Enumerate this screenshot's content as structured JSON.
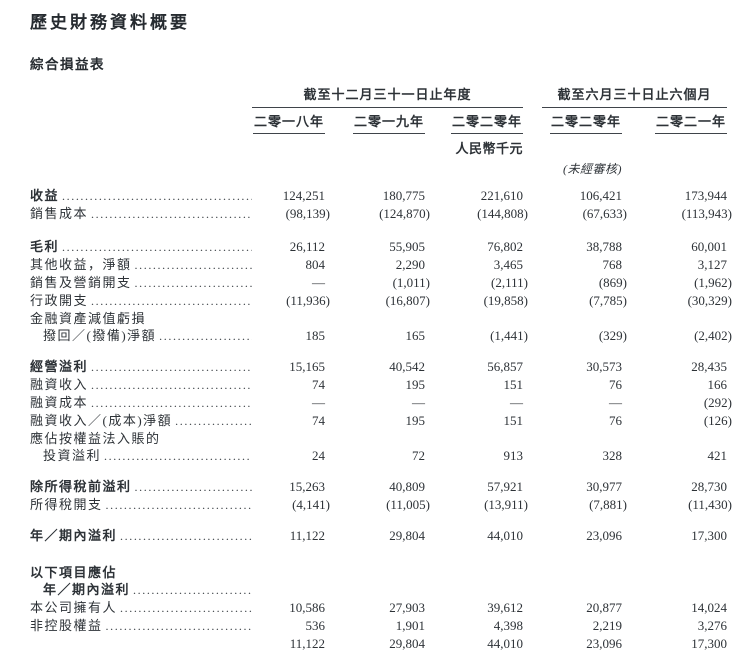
{
  "page": {
    "title": "歷史財務資料概要",
    "subtitle": "綜合損益表"
  },
  "table": {
    "unit_label": "人民幣千元",
    "unaudited_label": "(未經審核)",
    "col_groups": [
      {
        "label": "截至十二月三十一日止年度",
        "cols": [
          "二零一八年",
          "二零一九年",
          "二零二零年"
        ]
      },
      {
        "label": "截至六月三十日止六個月",
        "cols": [
          "二零二零年",
          "二零二一年"
        ]
      }
    ],
    "rows": [
      {
        "label": "收益",
        "bold": true,
        "dots": true,
        "values": [
          "124,251",
          "180,775",
          "221,610",
          "106,421",
          "173,944"
        ]
      },
      {
        "label": "銷售成本",
        "dots": true,
        "values": [
          "(98,139)",
          "(124,870)",
          "(144,808)",
          "(67,633)",
          "(113,943)"
        ]
      },
      {
        "label": "毛利",
        "bold": true,
        "dots": true,
        "gap": 15,
        "values": [
          "26,112",
          "55,905",
          "76,802",
          "38,788",
          "60,001"
        ]
      },
      {
        "label": "其他收益，淨額",
        "dots": true,
        "values": [
          "804",
          "2,290",
          "3,465",
          "768",
          "3,127"
        ]
      },
      {
        "label": "銷售及營銷開支",
        "dots": true,
        "values": [
          "—",
          "(1,011)",
          "(2,111)",
          "(869)",
          "(1,962)"
        ]
      },
      {
        "label": "行政開支",
        "dots": true,
        "values": [
          "(11,936)",
          "(16,807)",
          "(19,858)",
          "(7,785)",
          "(30,329)"
        ]
      },
      {
        "label": "金融資產減值虧損"
      },
      {
        "label": "撥回／(撥備)淨額",
        "indent": true,
        "dots": true,
        "values": [
          "185",
          "165",
          "(1,441)",
          "(329)",
          "(2,402)"
        ]
      },
      {
        "label": "經營溢利",
        "bold": true,
        "dots": true,
        "gap": 13,
        "values": [
          "15,165",
          "40,542",
          "56,857",
          "30,573",
          "28,435"
        ]
      },
      {
        "label": "融資收入",
        "dots": true,
        "values": [
          "74",
          "195",
          "151",
          "76",
          "166"
        ]
      },
      {
        "label": "融資成本",
        "dots": true,
        "values": [
          "—",
          "—",
          "—",
          "—",
          "(292)"
        ]
      },
      {
        "label": "融資收入／(成本)淨額",
        "dots": true,
        "values": [
          "74",
          "195",
          "151",
          "76",
          "(126)"
        ]
      },
      {
        "label": "應佔按權益法入賬的"
      },
      {
        "label": "投資溢利",
        "indent": true,
        "dots": true,
        "values": [
          "24",
          "72",
          "913",
          "328",
          "421"
        ]
      },
      {
        "label": "除所得稅前溢利",
        "bold": true,
        "dots": true,
        "gap": 13,
        "values": [
          "15,263",
          "40,809",
          "57,921",
          "30,977",
          "28,730"
        ]
      },
      {
        "label": "所得稅開支",
        "dots": true,
        "values": [
          "(4,141)",
          "(11,005)",
          "(13,911)",
          "(7,881)",
          "(11,430)"
        ]
      },
      {
        "label": "年／期內溢利",
        "bold": true,
        "dots": true,
        "gap": 13,
        "values": [
          "11,122",
          "29,804",
          "44,010",
          "23,096",
          "17,300"
        ]
      },
      {
        "label": "以下項目應佔",
        "bold": true,
        "gap": 19
      },
      {
        "label": "年／期內溢利",
        "bold": true,
        "indent": true,
        "dots": true
      },
      {
        "label": "本公司擁有人",
        "dots": true,
        "values": [
          "10,586",
          "27,903",
          "39,612",
          "20,877",
          "14,024"
        ]
      },
      {
        "label": "非控股權益",
        "dots": true,
        "values": [
          "536",
          "1,901",
          "4,398",
          "2,219",
          "3,276"
        ]
      },
      {
        "label": "",
        "values": [
          "11,122",
          "29,804",
          "44,010",
          "23,096",
          "17,300"
        ]
      }
    ]
  }
}
